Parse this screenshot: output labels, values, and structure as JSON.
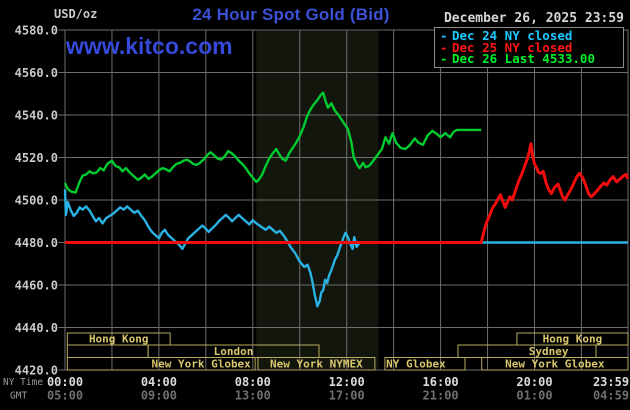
{
  "header": {
    "unit_label": "USD/oz",
    "title": "24 Hour Spot Gold (Bid)",
    "date": "December 26, 2025 23:59",
    "watermark": "www.kitco.com"
  },
  "legend": {
    "position": "top-right",
    "items": [
      {
        "label": "Dec 24 NY closed",
        "color": "#1ec9ff"
      },
      {
        "label": "Dec 25 NY closed",
        "color": "#ff1511"
      },
      {
        "label": "Dec 26 Last 4533.00",
        "color": "#00f02c"
      }
    ]
  },
  "axes": {
    "y": {
      "ticks": [
        "4580.0",
        "4560.0",
        "4540.0",
        "4520.0",
        "4500.0",
        "4480.0",
        "4460.0",
        "4440.0",
        "4420.0"
      ],
      "max": 4580,
      "min": 4420,
      "step": 20
    },
    "x": {
      "ny_label": "NY Time",
      "gmt_label": "GMT",
      "tick_hours": [
        0,
        4,
        8,
        12,
        16,
        20,
        23.983
      ],
      "ny_ticks": [
        "00:00",
        "04:00",
        "08:00",
        "12:00",
        "16:00",
        "20:00",
        "23:59"
      ],
      "gmt_ticks": [
        "05:00",
        "09:00",
        "13:00",
        "17:00",
        "21:00",
        "01:00",
        "04:59"
      ]
    }
  },
  "sessions": {
    "rows": [
      {
        "boxes": [
          {
            "label": "Hong Kong",
            "from": 0.1,
            "to": 4.48
          },
          {
            "label": "Hong Kong",
            "from": 19.25,
            "to": 24
          }
        ]
      },
      {
        "boxes": [
          {
            "label": "",
            "from": 0.1,
            "to": 3.54
          },
          {
            "label": "London",
            "from": 3.54,
            "to": 10.82
          },
          {
            "label": "Sydney",
            "from": 16.74,
            "to": 22.62,
            "label_at": 20.6
          }
        ]
      },
      {
        "boxes": [
          {
            "label": "New York Globex",
            "from": 0.1,
            "to": 8.1,
            "label_at": 5.8
          },
          {
            "label": "New York NYMEX",
            "from": 8.22,
            "to": 13.2
          },
          {
            "label": "NY Globex",
            "from": 13.63,
            "to": 17.04,
            "label_at": 14.95
          },
          {
            "label": "New York Globex",
            "from": 17.75,
            "to": 24
          }
        ]
      }
    ]
  },
  "chart_data": {
    "type": "line",
    "title": "24 Hour Spot Gold (Bid)",
    "xlabel": "NY Time",
    "ylabel": "USD/oz",
    "ylim": [
      4420,
      4580
    ],
    "x_hours_range": [
      0,
      23.983
    ],
    "grid": true,
    "highlight_band_hours": [
      8.15,
      13.35
    ],
    "highlight_color": "#12160d",
    "grid_color": "#6e6e6e",
    "session_box_color": "#b9ac5e",
    "series": [
      {
        "name": "Dec 24",
        "color": "#2bb2e5",
        "width": 2.4,
        "points": [
          [
            0,
            4505
          ],
          [
            0.04,
            4493
          ],
          [
            0.12,
            4499
          ],
          [
            0.25,
            4495
          ],
          [
            0.37,
            4492.5
          ],
          [
            0.5,
            4494
          ],
          [
            0.62,
            4496.5
          ],
          [
            0.75,
            4495.5
          ],
          [
            0.9,
            4497
          ],
          [
            1.05,
            4495
          ],
          [
            1.2,
            4492
          ],
          [
            1.32,
            4490
          ],
          [
            1.45,
            4491.5
          ],
          [
            1.6,
            4489
          ],
          [
            1.75,
            4491.5
          ],
          [
            1.9,
            4492.5
          ],
          [
            2.05,
            4493.5
          ],
          [
            2.2,
            4495
          ],
          [
            2.35,
            4496.5
          ],
          [
            2.5,
            4495.5
          ],
          [
            2.65,
            4497
          ],
          [
            2.8,
            4495.5
          ],
          [
            2.95,
            4494
          ],
          [
            3.1,
            4495
          ],
          [
            3.25,
            4492.5
          ],
          [
            3.4,
            4490.5
          ],
          [
            3.55,
            4487.5
          ],
          [
            3.7,
            4485
          ],
          [
            3.85,
            4483.5
          ],
          [
            4,
            4482
          ],
          [
            4.12,
            4484.5
          ],
          [
            4.25,
            4486
          ],
          [
            4.4,
            4483.5
          ],
          [
            4.55,
            4482
          ],
          [
            4.7,
            4480.5
          ],
          [
            4.85,
            4479
          ],
          [
            5,
            4477
          ],
          [
            5.12,
            4479.5
          ],
          [
            5.25,
            4482
          ],
          [
            5.4,
            4483.5
          ],
          [
            5.55,
            4485
          ],
          [
            5.7,
            4486.5
          ],
          [
            5.85,
            4488
          ],
          [
            6,
            4486.5
          ],
          [
            6.12,
            4485
          ],
          [
            6.25,
            4486.5
          ],
          [
            6.4,
            4488
          ],
          [
            6.55,
            4490
          ],
          [
            6.7,
            4491.5
          ],
          [
            6.85,
            4493
          ],
          [
            7,
            4491.5
          ],
          [
            7.12,
            4490
          ],
          [
            7.25,
            4491.5
          ],
          [
            7.4,
            4493
          ],
          [
            7.55,
            4491.5
          ],
          [
            7.7,
            4490
          ],
          [
            7.85,
            4488.5
          ],
          [
            8,
            4490.5
          ],
          [
            8.15,
            4489
          ],
          [
            8.35,
            4487.5
          ],
          [
            8.55,
            4486
          ],
          [
            8.7,
            4487.5
          ],
          [
            8.85,
            4486
          ],
          [
            9,
            4484.5
          ],
          [
            9.15,
            4485.5
          ],
          [
            9.3,
            4483.5
          ],
          [
            9.45,
            4481
          ],
          [
            9.6,
            4478
          ],
          [
            9.8,
            4475
          ],
          [
            10,
            4471
          ],
          [
            10.2,
            4468.5
          ],
          [
            10.33,
            4469.5
          ],
          [
            10.45,
            4466
          ],
          [
            10.55,
            4461
          ],
          [
            10.63,
            4456
          ],
          [
            10.75,
            4450
          ],
          [
            10.85,
            4452.5
          ],
          [
            10.92,
            4456.5
          ],
          [
            11,
            4457.5
          ],
          [
            11.08,
            4462.5
          ],
          [
            11.17,
            4461
          ],
          [
            11.25,
            4464.5
          ],
          [
            11.35,
            4467
          ],
          [
            11.5,
            4472
          ],
          [
            11.6,
            4474
          ],
          [
            11.72,
            4478
          ],
          [
            11.85,
            4482
          ],
          [
            11.95,
            4484.5
          ],
          [
            12.05,
            4482.5
          ],
          [
            12.15,
            4479.5
          ],
          [
            12.25,
            4477
          ],
          [
            12.32,
            4482.5
          ],
          [
            12.42,
            4478
          ],
          [
            12.55,
            4480
          ],
          [
            23.98,
            4480
          ]
        ]
      },
      {
        "name": "Dec 25",
        "color": "#f20d0d",
        "width": 3,
        "points": [
          [
            0,
            4480
          ],
          [
            17.73,
            4480
          ],
          [
            17.82,
            4484
          ],
          [
            17.9,
            4487.5
          ],
          [
            18,
            4490.5
          ],
          [
            18.1,
            4493
          ],
          [
            18.2,
            4496
          ],
          [
            18.32,
            4498
          ],
          [
            18.45,
            4500.5
          ],
          [
            18.55,
            4502.5
          ],
          [
            18.65,
            4499.5
          ],
          [
            18.75,
            4496.5
          ],
          [
            18.85,
            4499
          ],
          [
            18.95,
            4501.5
          ],
          [
            19.05,
            4500
          ],
          [
            19.15,
            4503
          ],
          [
            19.25,
            4506.5
          ],
          [
            19.35,
            4509.5
          ],
          [
            19.45,
            4512
          ],
          [
            19.55,
            4515
          ],
          [
            19.65,
            4518
          ],
          [
            19.75,
            4521.5
          ],
          [
            19.85,
            4526.5
          ],
          [
            19.92,
            4521
          ],
          [
            20,
            4517
          ],
          [
            20.08,
            4515.5
          ],
          [
            20.17,
            4513
          ],
          [
            20.27,
            4512.5
          ],
          [
            20.37,
            4513.5
          ],
          [
            20.48,
            4508.5
          ],
          [
            20.6,
            4505
          ],
          [
            20.72,
            4503
          ],
          [
            20.85,
            4506
          ],
          [
            21,
            4507.5
          ],
          [
            21.1,
            4504.5
          ],
          [
            21.2,
            4501.5
          ],
          [
            21.3,
            4500
          ],
          [
            21.42,
            4502.5
          ],
          [
            21.55,
            4505
          ],
          [
            21.68,
            4508
          ],
          [
            21.8,
            4511
          ],
          [
            21.92,
            4512.5
          ],
          [
            22.05,
            4510.5
          ],
          [
            22.18,
            4507
          ],
          [
            22.3,
            4503
          ],
          [
            22.42,
            4501.5
          ],
          [
            22.55,
            4503
          ],
          [
            22.68,
            4504.5
          ],
          [
            22.82,
            4506.5
          ],
          [
            22.95,
            4508
          ],
          [
            23.08,
            4507
          ],
          [
            23.22,
            4509.5
          ],
          [
            23.35,
            4511
          ],
          [
            23.5,
            4508.5
          ],
          [
            23.65,
            4510
          ],
          [
            23.8,
            4511.5
          ],
          [
            23.9,
            4512
          ],
          [
            23.98,
            4510
          ]
        ]
      },
      {
        "name": "Dec 26",
        "color": "#00cc30",
        "width": 2.4,
        "points": [
          [
            0,
            4508
          ],
          [
            0.1,
            4505.5
          ],
          [
            0.25,
            4504
          ],
          [
            0.45,
            4503.5
          ],
          [
            0.6,
            4508
          ],
          [
            0.75,
            4511.5
          ],
          [
            0.9,
            4512
          ],
          [
            1.05,
            4513.5
          ],
          [
            1.2,
            4512.5
          ],
          [
            1.35,
            4513
          ],
          [
            1.5,
            4515
          ],
          [
            1.65,
            4514
          ],
          [
            1.8,
            4517
          ],
          [
            2,
            4518.5
          ],
          [
            2.15,
            4516
          ],
          [
            2.3,
            4515.5
          ],
          [
            2.45,
            4513.5
          ],
          [
            2.6,
            4515
          ],
          [
            2.75,
            4513
          ],
          [
            2.95,
            4511
          ],
          [
            3.1,
            4509.5
          ],
          [
            3.25,
            4510.5
          ],
          [
            3.4,
            4512
          ],
          [
            3.55,
            4510
          ],
          [
            3.7,
            4511
          ],
          [
            3.85,
            4512.5
          ],
          [
            4,
            4514
          ],
          [
            4.15,
            4515
          ],
          [
            4.3,
            4514.5
          ],
          [
            4.45,
            4513.5
          ],
          [
            4.6,
            4515.5
          ],
          [
            4.75,
            4517
          ],
          [
            4.9,
            4517.5
          ],
          [
            5.05,
            4518.5
          ],
          [
            5.2,
            4519
          ],
          [
            5.35,
            4518
          ],
          [
            5.45,
            4517
          ],
          [
            5.6,
            4516.5
          ],
          [
            5.75,
            4517.5
          ],
          [
            5.9,
            4519
          ],
          [
            6.05,
            4521
          ],
          [
            6.2,
            4522.5
          ],
          [
            6.35,
            4521
          ],
          [
            6.5,
            4519.5
          ],
          [
            6.65,
            4519
          ],
          [
            6.8,
            4520.5
          ],
          [
            6.95,
            4523
          ],
          [
            7.1,
            4522
          ],
          [
            7.25,
            4520.5
          ],
          [
            7.4,
            4518.5
          ],
          [
            7.55,
            4517
          ],
          [
            7.7,
            4515
          ],
          [
            7.85,
            4512.5
          ],
          [
            8,
            4510.5
          ],
          [
            8.15,
            4508.5
          ],
          [
            8.25,
            4509.5
          ],
          [
            8.4,
            4512
          ],
          [
            8.55,
            4516
          ],
          [
            8.7,
            4519.5
          ],
          [
            8.85,
            4522
          ],
          [
            9,
            4524
          ],
          [
            9.1,
            4522
          ],
          [
            9.25,
            4519.5
          ],
          [
            9.4,
            4518.5
          ],
          [
            9.55,
            4522
          ],
          [
            9.7,
            4524.5
          ],
          [
            9.85,
            4527
          ],
          [
            10,
            4530
          ],
          [
            10.15,
            4534
          ],
          [
            10.3,
            4539
          ],
          [
            10.45,
            4542.5
          ],
          [
            10.6,
            4545
          ],
          [
            10.75,
            4547
          ],
          [
            10.9,
            4549.5
          ],
          [
            11,
            4550.5
          ],
          [
            11.1,
            4546.5
          ],
          [
            11.2,
            4543.5
          ],
          [
            11.35,
            4545.5
          ],
          [
            11.5,
            4542
          ],
          [
            11.65,
            4540
          ],
          [
            11.8,
            4537.5
          ],
          [
            11.95,
            4535
          ],
          [
            12.05,
            4533.5
          ],
          [
            12.2,
            4527
          ],
          [
            12.3,
            4520
          ],
          [
            12.45,
            4516.5
          ],
          [
            12.55,
            4515
          ],
          [
            12.7,
            4517.5
          ],
          [
            12.8,
            4515.5
          ],
          [
            12.95,
            4516
          ],
          [
            13.1,
            4518
          ],
          [
            13.3,
            4521
          ],
          [
            13.5,
            4524
          ],
          [
            13.65,
            4529.5
          ],
          [
            13.8,
            4526.5
          ],
          [
            13.95,
            4531.5
          ],
          [
            14.1,
            4527
          ],
          [
            14.3,
            4524.5
          ],
          [
            14.5,
            4524
          ],
          [
            14.7,
            4526
          ],
          [
            14.9,
            4529
          ],
          [
            15.05,
            4527
          ],
          [
            15.25,
            4526
          ],
          [
            15.45,
            4530.5
          ],
          [
            15.65,
            4532.5
          ],
          [
            15.85,
            4531
          ],
          [
            16,
            4529.5
          ],
          [
            16.2,
            4531.5
          ],
          [
            16.4,
            4529.5
          ],
          [
            16.55,
            4532
          ],
          [
            16.7,
            4533
          ],
          [
            17.73,
            4533
          ]
        ]
      }
    ]
  }
}
